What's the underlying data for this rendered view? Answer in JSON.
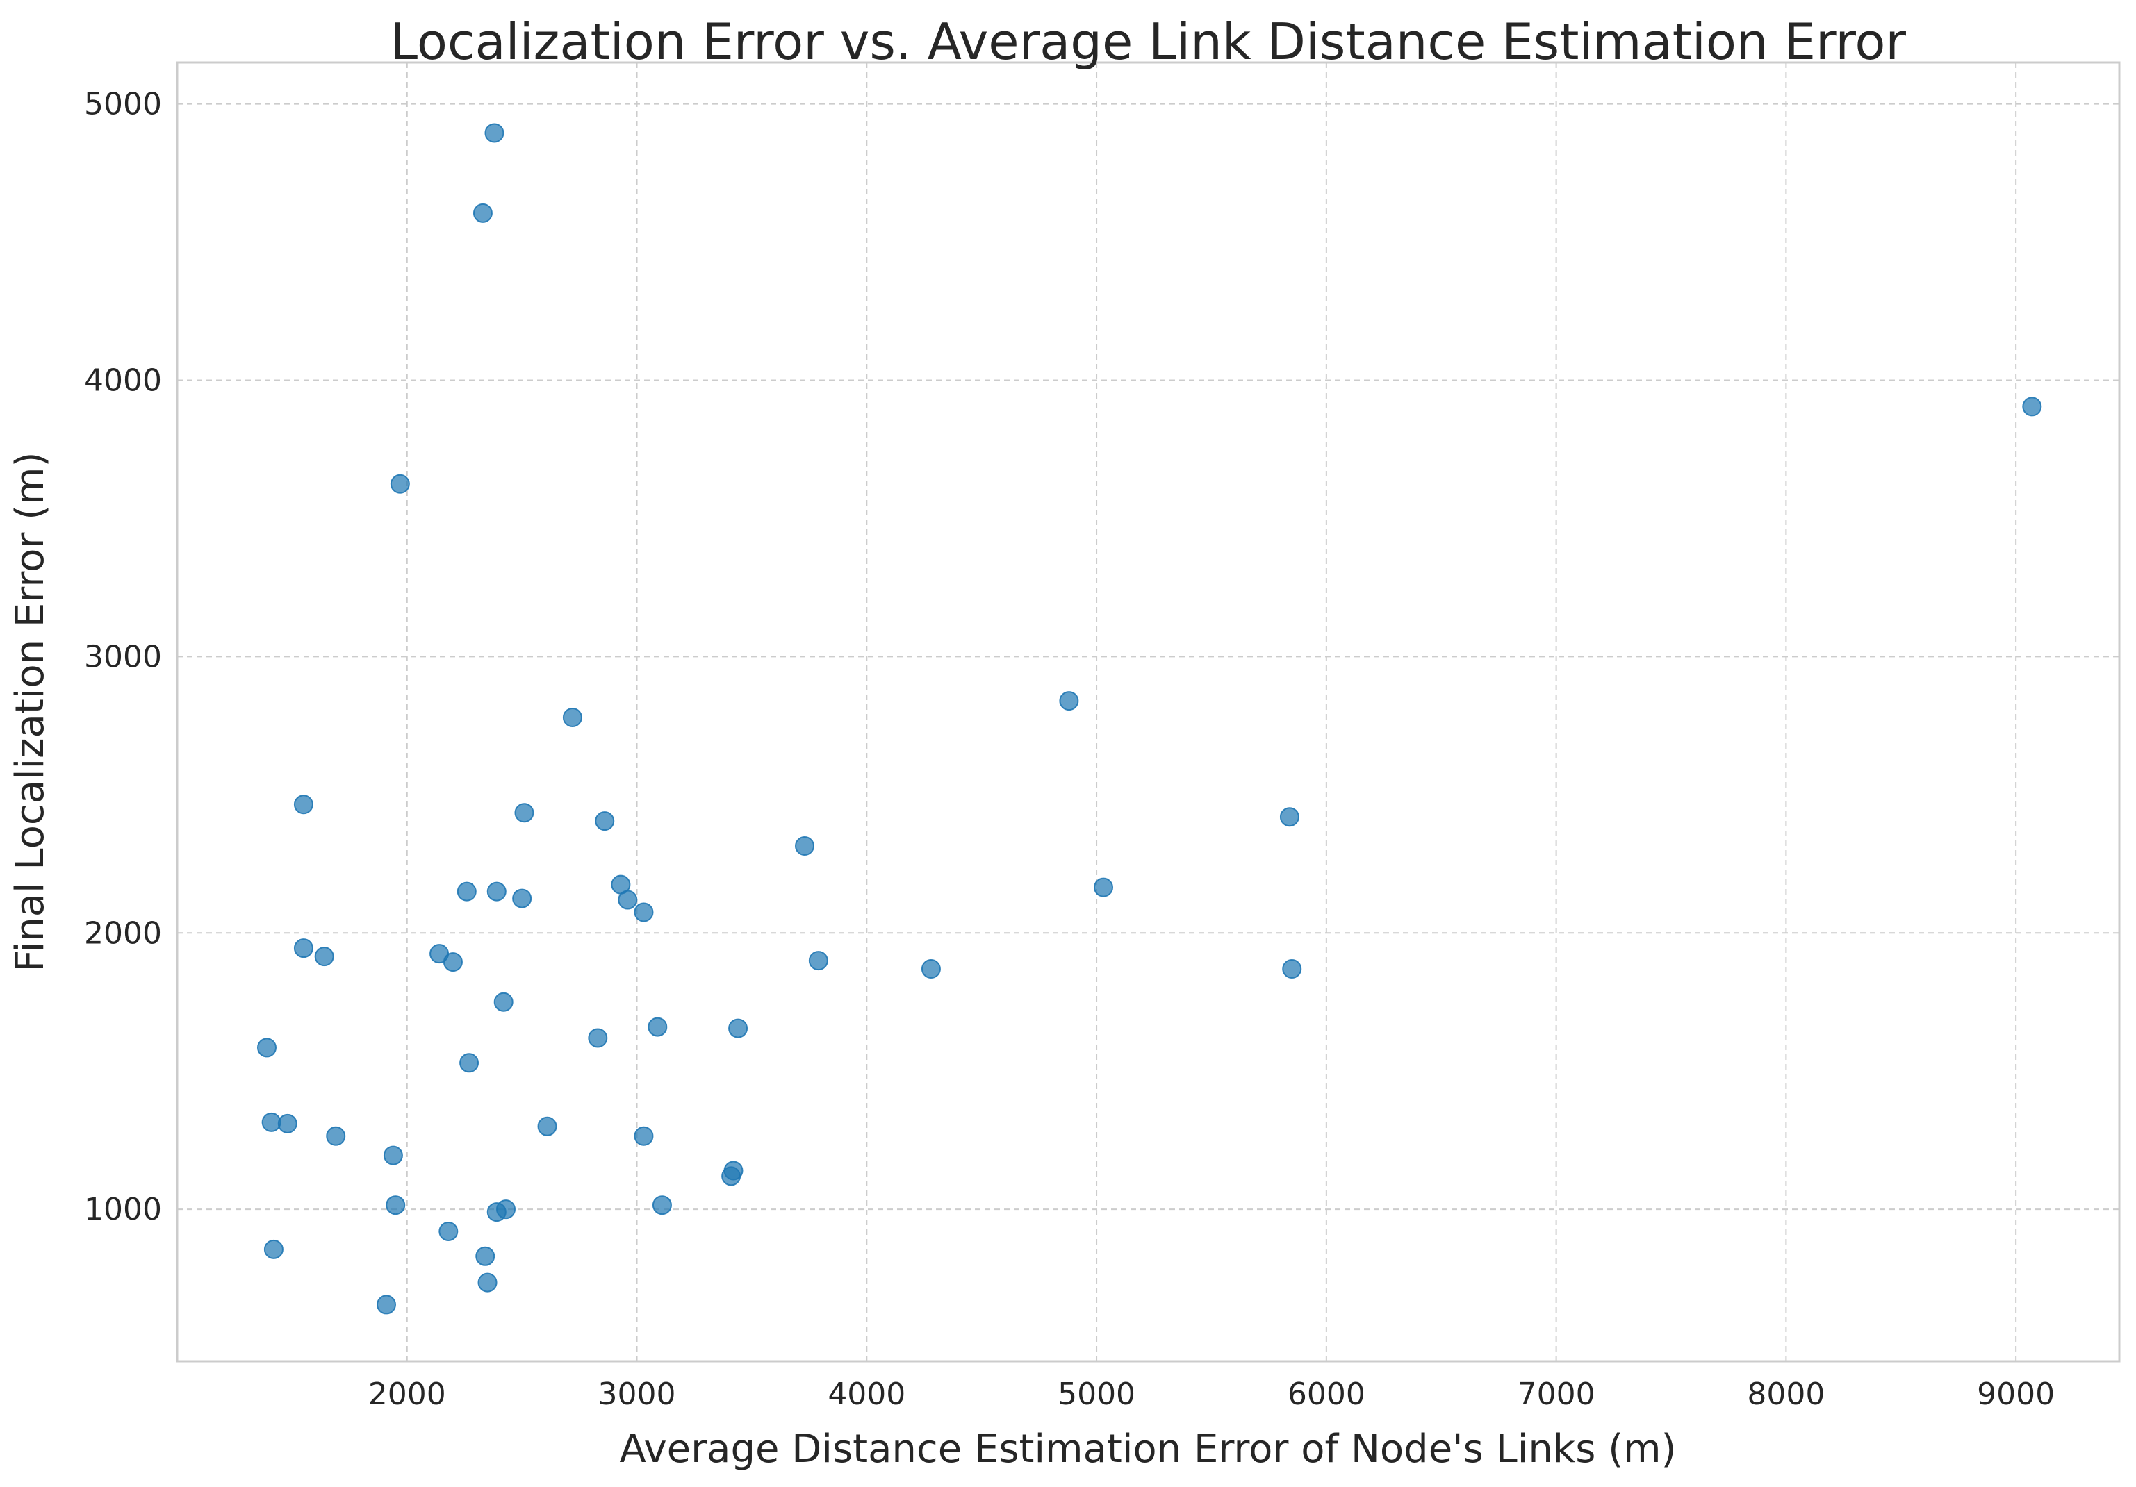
{
  "chart_data": {
    "type": "scatter",
    "title": "Localization Error vs. Average Link Distance Estimation Error",
    "xlabel": "Average Distance Estimation Error of Node's Links (m)",
    "ylabel": "Final Localization Error (m)",
    "xlim": [
      1000,
      9450
    ],
    "ylim": [
      450,
      5150
    ],
    "xticks": [
      2000,
      3000,
      4000,
      5000,
      6000,
      7000,
      8000,
      9000
    ],
    "yticks": [
      1000,
      2000,
      3000,
      4000,
      5000
    ],
    "grid": true,
    "point_color": "#1f77b4",
    "points": [
      {
        "x": 2380,
        "y": 4895
      },
      {
        "x": 2330,
        "y": 4605
      },
      {
        "x": 9070,
        "y": 3905
      },
      {
        "x": 1970,
        "y": 3625
      },
      {
        "x": 4880,
        "y": 2840
      },
      {
        "x": 2720,
        "y": 2780
      },
      {
        "x": 1550,
        "y": 2465
      },
      {
        "x": 2510,
        "y": 2435
      },
      {
        "x": 5840,
        "y": 2420
      },
      {
        "x": 2860,
        "y": 2405
      },
      {
        "x": 3730,
        "y": 2315
      },
      {
        "x": 2930,
        "y": 2175
      },
      {
        "x": 5030,
        "y": 2165
      },
      {
        "x": 2260,
        "y": 2150
      },
      {
        "x": 2390,
        "y": 2150
      },
      {
        "x": 2500,
        "y": 2125
      },
      {
        "x": 2960,
        "y": 2120
      },
      {
        "x": 3030,
        "y": 2075
      },
      {
        "x": 1550,
        "y": 1945
      },
      {
        "x": 1640,
        "y": 1915
      },
      {
        "x": 2140,
        "y": 1925
      },
      {
        "x": 2200,
        "y": 1895
      },
      {
        "x": 3790,
        "y": 1900
      },
      {
        "x": 4280,
        "y": 1870
      },
      {
        "x": 5850,
        "y": 1870
      },
      {
        "x": 2420,
        "y": 1750
      },
      {
        "x": 3090,
        "y": 1660
      },
      {
        "x": 3440,
        "y": 1655
      },
      {
        "x": 2830,
        "y": 1620
      },
      {
        "x": 1390,
        "y": 1585
      },
      {
        "x": 2270,
        "y": 1530
      },
      {
        "x": 1410,
        "y": 1315
      },
      {
        "x": 1480,
        "y": 1310
      },
      {
        "x": 2610,
        "y": 1300
      },
      {
        "x": 1690,
        "y": 1265
      },
      {
        "x": 3030,
        "y": 1265
      },
      {
        "x": 1940,
        "y": 1195
      },
      {
        "x": 3420,
        "y": 1140
      },
      {
        "x": 3410,
        "y": 1120
      },
      {
        "x": 1950,
        "y": 1015
      },
      {
        "x": 3110,
        "y": 1015
      },
      {
        "x": 2430,
        "y": 1000
      },
      {
        "x": 2390,
        "y": 990
      },
      {
        "x": 2180,
        "y": 920
      },
      {
        "x": 1420,
        "y": 855
      },
      {
        "x": 2340,
        "y": 830
      },
      {
        "x": 2350,
        "y": 735
      },
      {
        "x": 1910,
        "y": 655
      }
    ]
  }
}
